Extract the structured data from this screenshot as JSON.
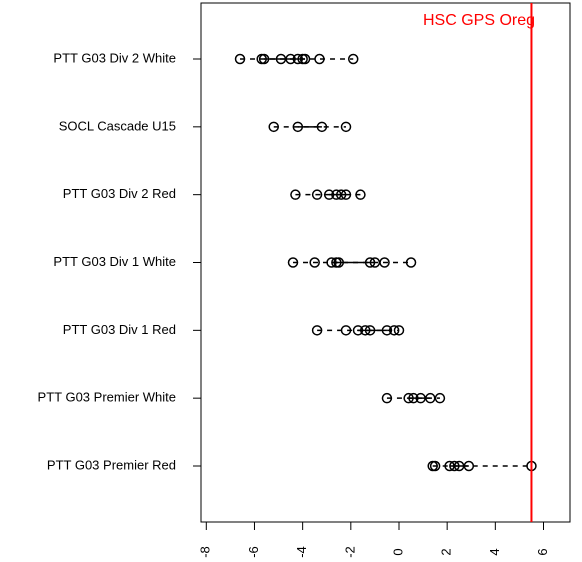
{
  "chart_data": {
    "type": "strip",
    "categories": [
      "PTT G03 Div 2 White",
      "SOCL Cascade U15",
      "PTT G03 Div 2 Red",
      "PTT G03 Div 1 White",
      "PTT G03 Div 1 Red",
      "PTT G03 Premier White",
      "PTT G03 Premier Red"
    ],
    "values": [
      [
        -6.6,
        -5.7,
        -5.6,
        -4.9,
        -4.5,
        -4.2,
        -4.0,
        -3.9,
        -3.3,
        -1.9
      ],
      [
        -5.2,
        -4.2,
        -3.2,
        -2.2
      ],
      [
        -4.3,
        -3.4,
        -2.9,
        -2.6,
        -2.4,
        -2.2,
        -1.6
      ],
      [
        -4.4,
        -3.5,
        -2.8,
        -2.6,
        -2.5,
        -1.2,
        -1.0,
        -0.6,
        0.5
      ],
      [
        -3.4,
        -2.2,
        -1.7,
        -1.4,
        -1.2,
        -0.5,
        -0.2,
        0.0
      ],
      [
        -0.5,
        0.4,
        0.6,
        0.9,
        1.3,
        1.7
      ],
      [
        1.4,
        1.5,
        2.1,
        2.3,
        2.5,
        2.9,
        5.5
      ]
    ],
    "color": "#000000",
    "xlim": [
      -8.22,
      7.1
    ],
    "xticks": [
      -8,
      -6,
      -4,
      -2,
      0,
      2,
      4,
      6
    ],
    "reference_line": {
      "value": 5.5,
      "label": "HSC GPS Oreg",
      "color": "#ff0000"
    }
  }
}
